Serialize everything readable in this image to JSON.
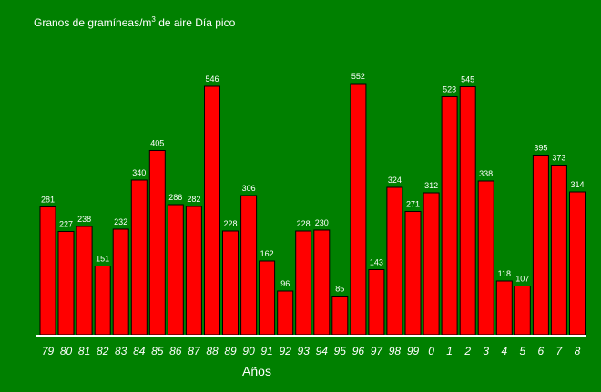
{
  "chart_data": {
    "type": "bar",
    "title": "Granos de gramíneas/m",
    "title_superscript": "3",
    "title_rest": " de aire Día pico",
    "xlabel": "Años",
    "ylabel": "",
    "ylim": [
      0,
      560
    ],
    "grid": false,
    "categories": [
      "79",
      "80",
      "81",
      "82",
      "83",
      "84",
      "85",
      "86",
      "87",
      "88",
      "89",
      "90",
      "91",
      "92",
      "93",
      "94",
      "95",
      "96",
      "97",
      "98",
      "99",
      "0",
      "1",
      "2",
      "3",
      "4",
      "5",
      "6",
      "7",
      "8"
    ],
    "values": [
      281,
      227,
      238,
      151,
      232,
      340,
      405,
      286,
      282,
      546,
      228,
      306,
      162,
      96,
      228,
      230,
      85,
      552,
      143,
      324,
      271,
      312,
      523,
      545,
      338,
      118,
      107,
      395,
      373,
      314
    ],
    "colors": {
      "background": "#008000",
      "bar_fill": "#ff0000",
      "bar_stroke": "#000000",
      "text": "#ffffff",
      "axis": "#ffffff"
    }
  }
}
